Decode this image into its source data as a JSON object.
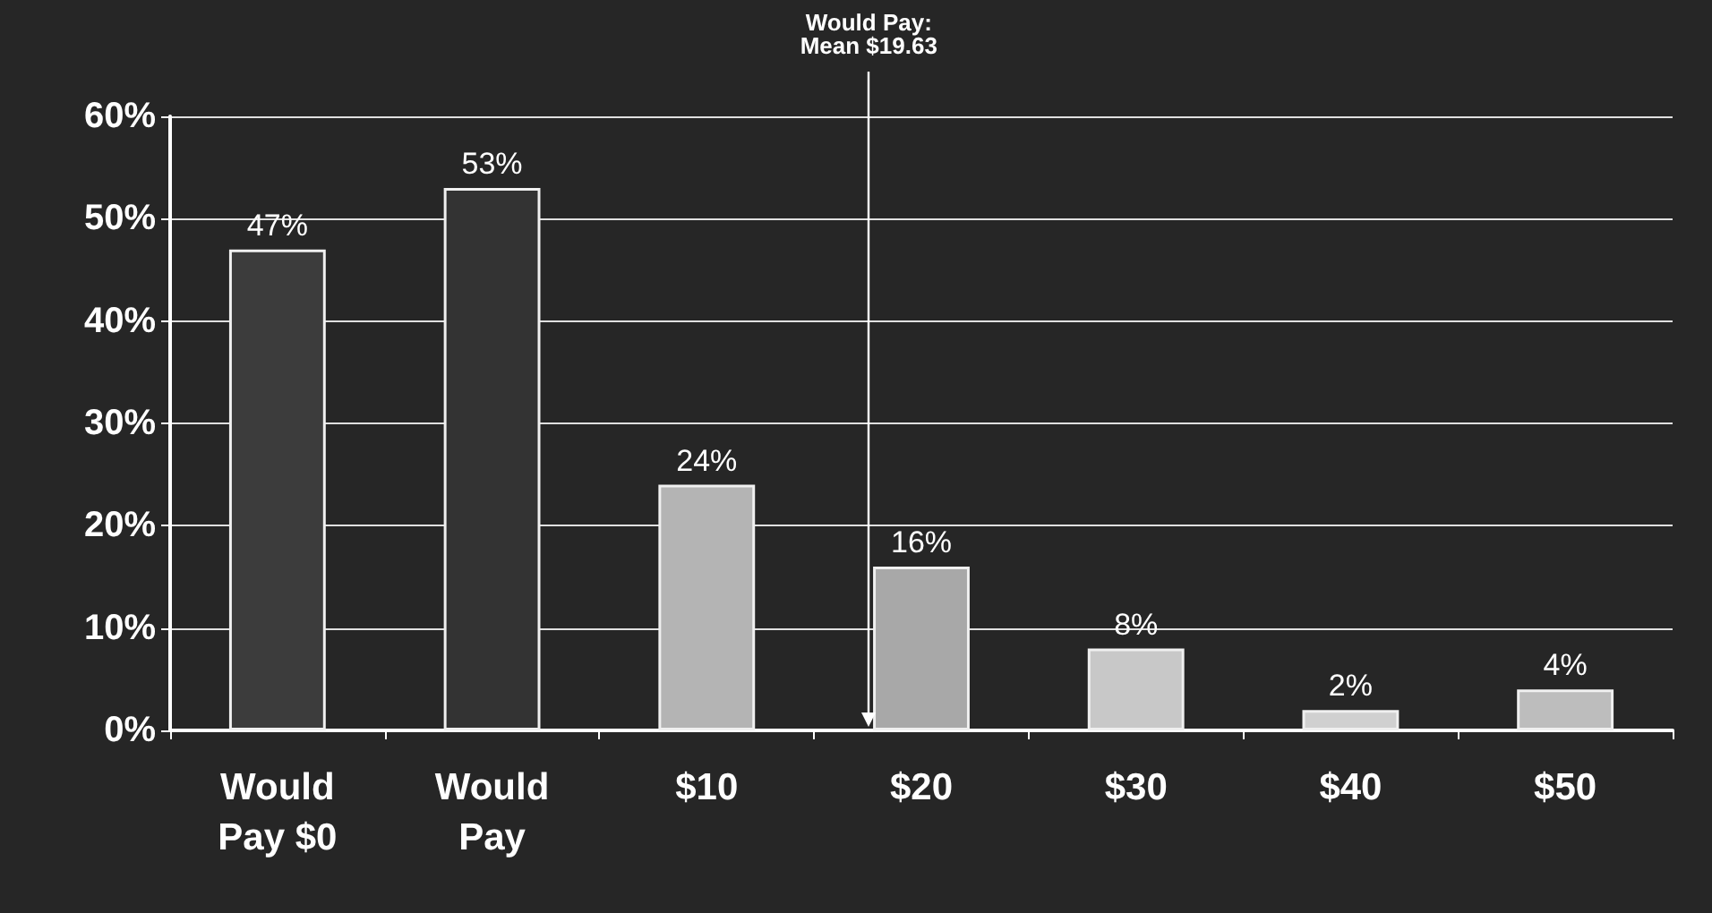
{
  "chart_data": {
    "type": "bar",
    "categories": [
      "Would\nPay $0",
      "Would\nPay",
      "$10",
      "$20",
      "$30",
      "$40",
      "$50"
    ],
    "values": [
      47,
      53,
      24,
      16,
      8,
      2,
      4
    ],
    "colors": [
      "#3c3c3c",
      "#333333",
      "#b4b4b4",
      "#a8a8a8",
      "#c8c8c8",
      "#d0d0d0",
      "#bdbdbd"
    ],
    "value_labels": [
      "47%",
      "53%",
      "24%",
      "16%",
      "8%",
      "2%",
      "4%"
    ],
    "ylim": [
      0,
      60
    ],
    "yticks": [
      {
        "value": 0,
        "label": "0%"
      },
      {
        "value": 10,
        "label": "10%"
      },
      {
        "value": 20,
        "label": "20%"
      },
      {
        "value": 30,
        "label": "30%"
      },
      {
        "value": 40,
        "label": "40%"
      },
      {
        "value": 50,
        "label": "50%"
      },
      {
        "value": 60,
        "label": "60%"
      }
    ],
    "grid": "y",
    "annotations": [
      "Would Pay:\nMean $19.63"
    ]
  }
}
